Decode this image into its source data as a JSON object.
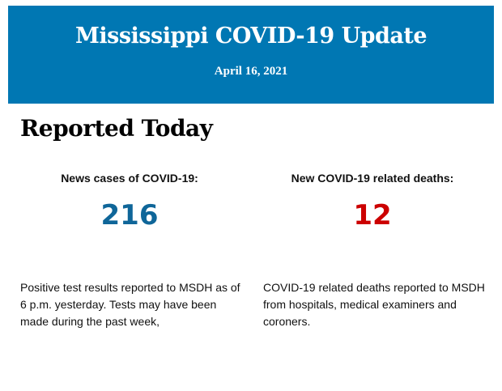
{
  "header": {
    "title": "Mississippi COVID-19 Update",
    "date": "April 16, 2021",
    "background": "#0077b3"
  },
  "section_title": "Reported Today",
  "stats": [
    {
      "label": "News cases of COVID-19:",
      "value": "216",
      "color": "#0f6699",
      "description": "Positive test results reported to MSDH as of 6 p.m. yesterday. Tests may have been made during the past week,"
    },
    {
      "label": "New COVID-19 related deaths:",
      "value": "12",
      "color": "#cc0000",
      "description": "COVID-19 related deaths reported to MSDH from hospitals, medical examiners and coroners."
    }
  ]
}
